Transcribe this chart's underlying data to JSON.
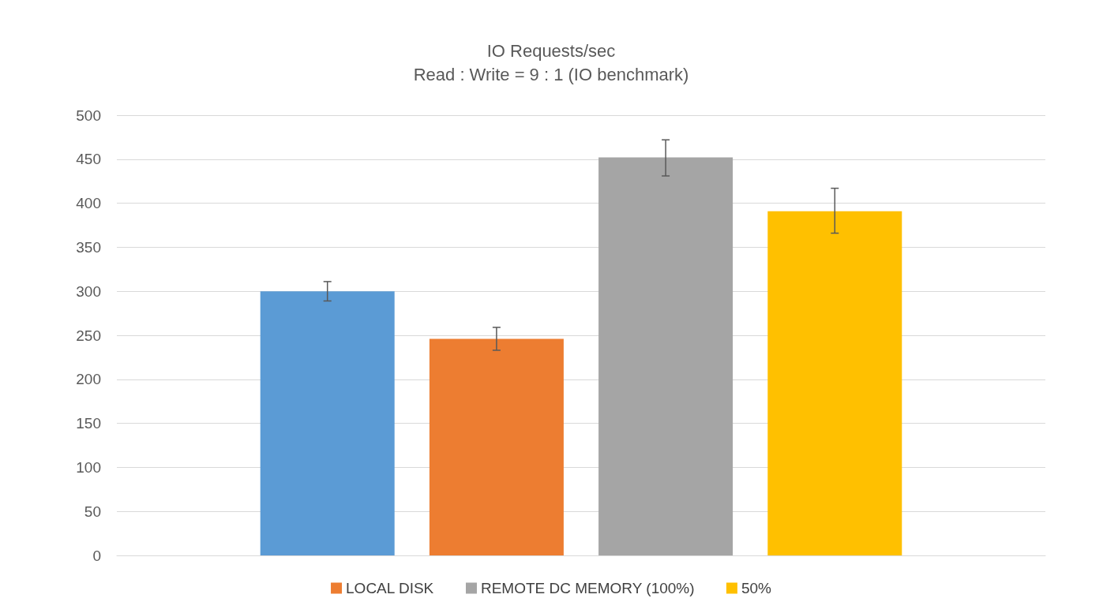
{
  "chart_data": {
    "type": "bar",
    "title": "IO Requests/sec",
    "subtitle": "Read : Write = 9 : 1 (IO benchmark)",
    "categories": [
      null
    ],
    "series": [
      {
        "color": "#5b9bd5",
        "values": [
          300
        ],
        "errors": [
          [
            289,
            311
          ]
        ]
      },
      {
        "name": "LOCAL DISK",
        "color": "#ed7d31",
        "values": [
          246
        ],
        "errors": [
          [
            233,
            259
          ]
        ]
      },
      {
        "name": "REMOTE DC MEMORY (100%)",
        "color": "#a5a5a5",
        "values": [
          452
        ],
        "errors": [
          [
            431,
            472
          ]
        ]
      },
      {
        "name": "50%",
        "color": "#ffc000",
        "values": [
          391
        ],
        "errors": [
          [
            366,
            417
          ]
        ]
      }
    ],
    "ylim": [
      0,
      500
    ],
    "yticks": [
      0,
      50,
      100,
      150,
      200,
      250,
      300,
      350,
      400,
      450,
      500
    ],
    "grid": "y",
    "legend": "bottom"
  }
}
